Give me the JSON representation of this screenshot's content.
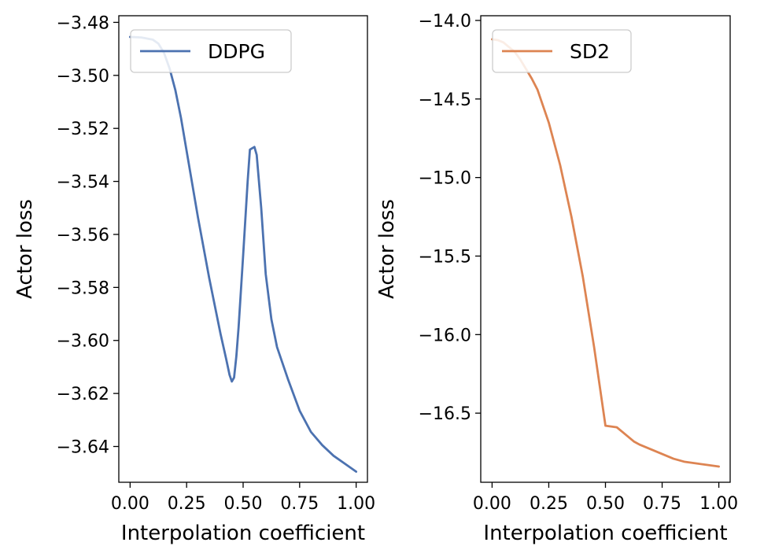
{
  "chart_data": [
    {
      "type": "line",
      "title": "",
      "xlabel": "Interpolation coefficient",
      "ylabel": "Actor loss",
      "xlim": [
        -0.05,
        1.05
      ],
      "ylim": [
        -3.6535,
        -3.4775
      ],
      "xticks": [
        0.0,
        0.25,
        0.5,
        0.75,
        1.0
      ],
      "xtick_labels": [
        "0.00",
        "0.25",
        "0.50",
        "0.75",
        "1.00"
      ],
      "yticks": [
        -3.48,
        -3.5,
        -3.52,
        -3.54,
        -3.56,
        -3.58,
        -3.6,
        -3.62,
        -3.64
      ],
      "ytick_labels": [
        "−3.48",
        "−3.50",
        "−3.52",
        "−3.54",
        "−3.56",
        "−3.58",
        "−3.60",
        "−3.62",
        "−3.64"
      ],
      "legend_position": "upper-left",
      "series": [
        {
          "name": "DDPG",
          "color": "#4c72b0",
          "x": [
            0,
            0.05,
            0.1,
            0.125,
            0.15,
            0.175,
            0.2,
            0.225,
            0.25,
            0.3,
            0.35,
            0.4,
            0.425,
            0.44,
            0.45,
            0.46,
            0.47,
            0.48,
            0.5,
            0.52,
            0.53,
            0.54,
            0.55,
            0.56,
            0.58,
            0.6,
            0.625,
            0.65,
            0.7,
            0.75,
            0.8,
            0.85,
            0.9,
            0.95,
            1.0
          ],
          "y": [
            -3.4855,
            -3.4857,
            -3.4865,
            -3.488,
            -3.4915,
            -3.4975,
            -3.5055,
            -3.516,
            -3.5285,
            -3.5535,
            -3.5765,
            -3.5975,
            -3.607,
            -3.613,
            -3.6155,
            -3.614,
            -3.606,
            -3.595,
            -3.568,
            -3.54,
            -3.528,
            -3.5275,
            -3.527,
            -3.53,
            -3.55,
            -3.575,
            -3.592,
            -3.6025,
            -3.615,
            -3.6265,
            -3.6345,
            -3.6395,
            -3.6435,
            -3.6465,
            -3.6495
          ]
        }
      ]
    },
    {
      "type": "line",
      "title": "",
      "xlabel": "Interpolation coefficient",
      "ylabel": "Actor loss",
      "xlim": [
        -0.05,
        1.05
      ],
      "ylim": [
        -16.94,
        -13.97
      ],
      "xticks": [
        0.0,
        0.25,
        0.5,
        0.75,
        1.0
      ],
      "xtick_labels": [
        "0.00",
        "0.25",
        "0.50",
        "0.75",
        "1.00"
      ],
      "yticks": [
        -14.0,
        -14.5,
        -15.0,
        -15.5,
        -16.0,
        -16.5
      ],
      "ytick_labels": [
        "−14.0",
        "−14.5",
        "−15.0",
        "−15.5",
        "−16.0",
        "−16.5"
      ],
      "legend_position": "upper-left",
      "series": [
        {
          "name": "SD2",
          "color": "#dd8452",
          "x": [
            0,
            0.025,
            0.05,
            0.075,
            0.1,
            0.125,
            0.15,
            0.175,
            0.2,
            0.25,
            0.3,
            0.35,
            0.4,
            0.45,
            0.5,
            0.55,
            0.575,
            0.6,
            0.625,
            0.65,
            0.7,
            0.75,
            0.8,
            0.85,
            0.9,
            0.95,
            1.0
          ],
          "y": [
            -14.12,
            -14.125,
            -14.14,
            -14.17,
            -14.2,
            -14.25,
            -14.31,
            -14.37,
            -14.44,
            -14.65,
            -14.92,
            -15.25,
            -15.63,
            -16.08,
            -16.58,
            -16.59,
            -16.62,
            -16.65,
            -16.68,
            -16.7,
            -16.73,
            -16.76,
            -16.79,
            -16.81,
            -16.82,
            -16.83,
            -16.84
          ]
        }
      ]
    }
  ]
}
